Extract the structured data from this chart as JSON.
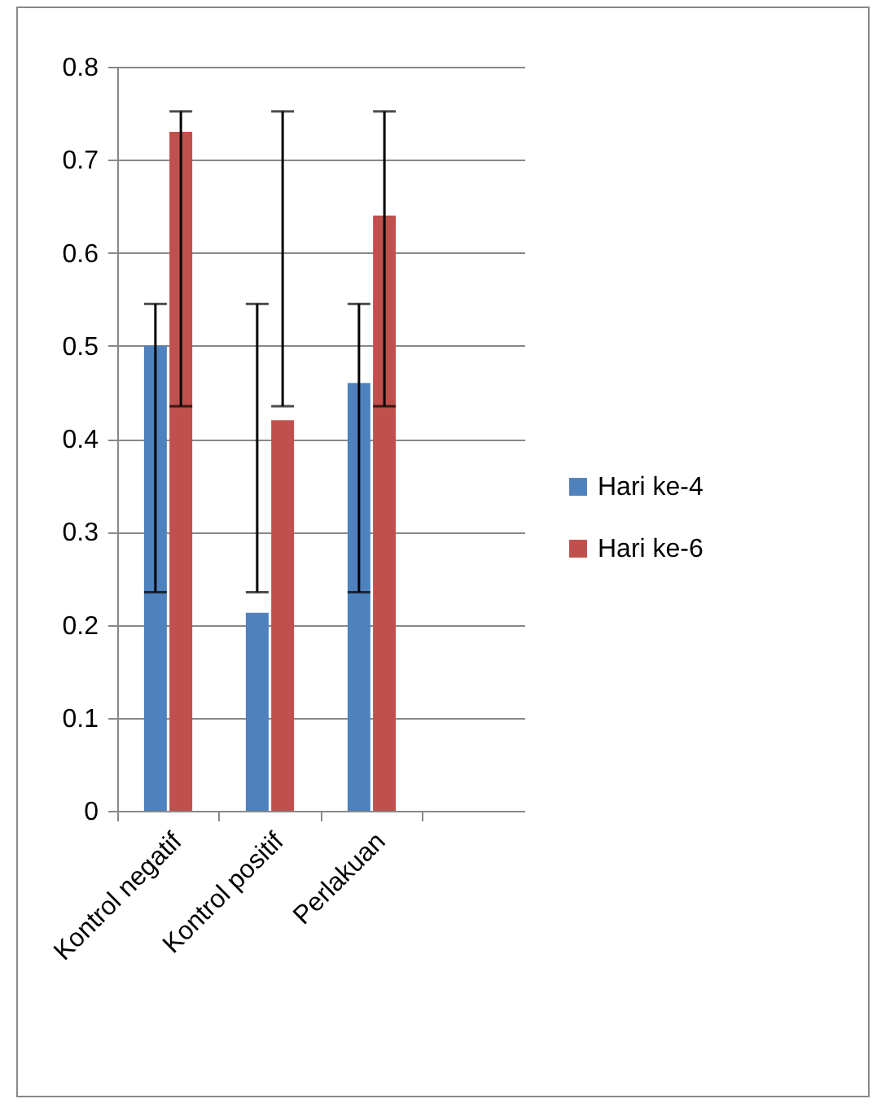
{
  "chart_data": {
    "type": "bar",
    "categories": [
      "Kontrol negatif",
      "Kontrol positif",
      "Perlakuan",
      null
    ],
    "series": [
      {
        "name": "Hari ke-4",
        "color": "#4f81bd",
        "values": [
          0.5,
          0.213,
          0.46,
          null
        ],
        "errors": [
          [
            0.235,
            0.545
          ],
          [
            0.235,
            0.545
          ],
          [
            0.235,
            0.545
          ],
          null
        ]
      },
      {
        "name": "Hari ke-6",
        "color": "#c0504d",
        "values": [
          0.73,
          0.42,
          0.64,
          null
        ],
        "errors": [
          [
            0.435,
            0.752
          ],
          [
            0.435,
            0.752
          ],
          [
            0.435,
            0.752
          ],
          null
        ]
      }
    ],
    "ylim": [
      0,
      0.8
    ],
    "yticks": [
      0,
      0.1,
      0.2,
      0.3,
      0.4,
      0.5,
      0.6,
      0.7,
      0.8
    ],
    "grid": "y",
    "legend": "right"
  }
}
